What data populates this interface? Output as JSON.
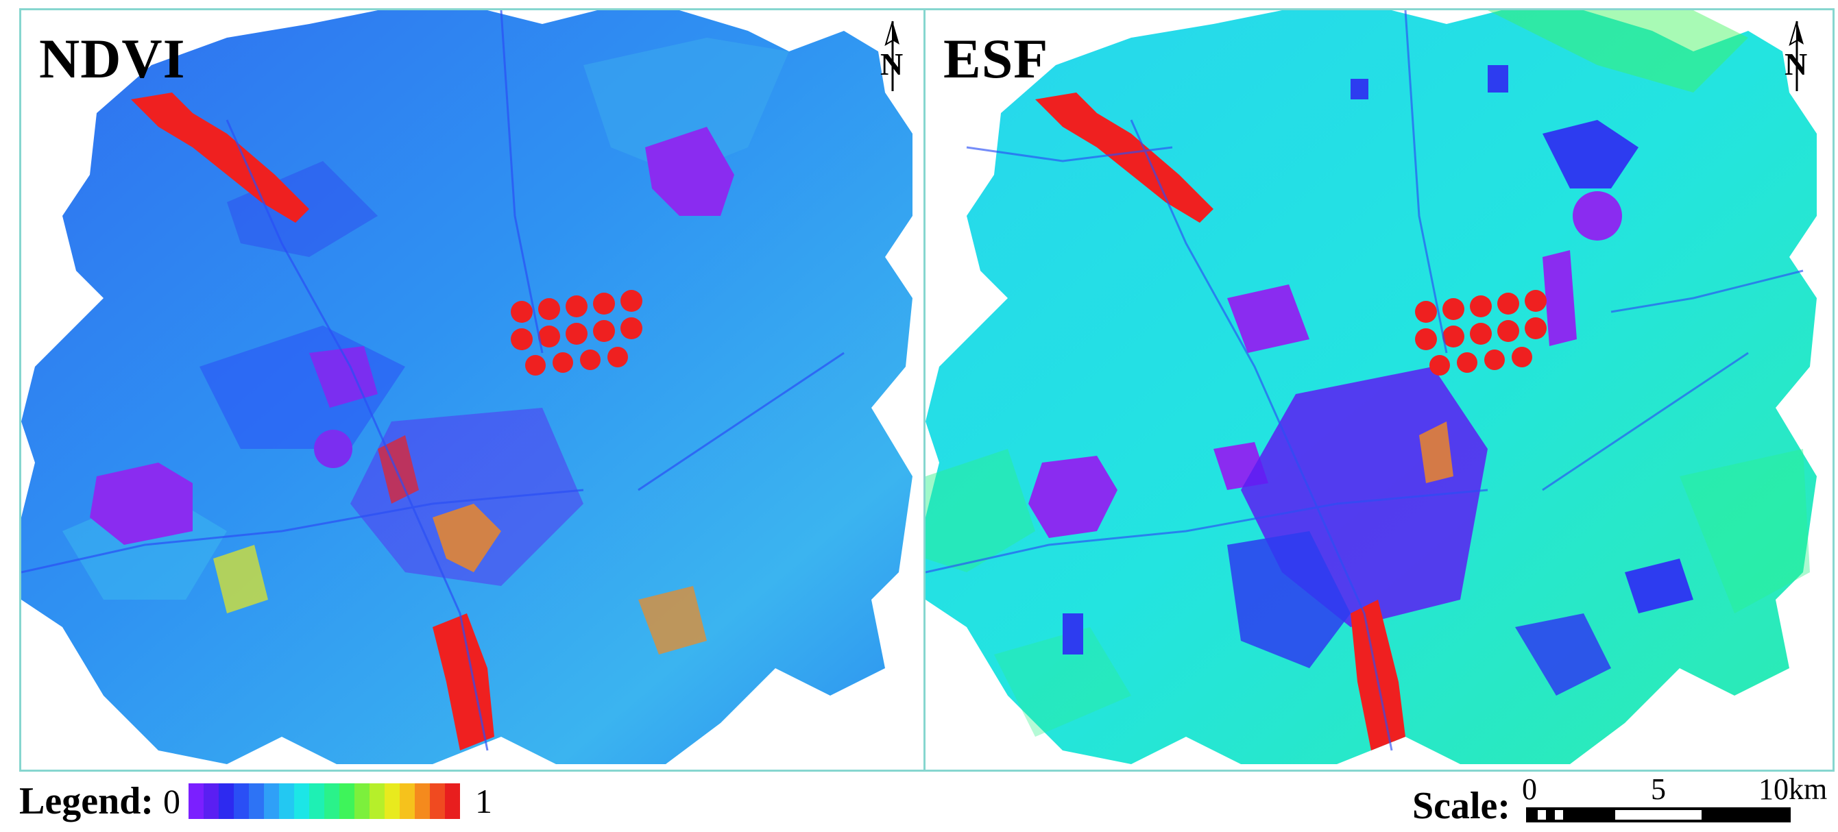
{
  "panels": [
    {
      "title": "NDVI",
      "north_label": "N"
    },
    {
      "title": "ESF",
      "north_label": "N"
    }
  ],
  "legend": {
    "title": "Legend:",
    "min_label": "0",
    "max_label": "1",
    "colors": [
      "#7b1fff",
      "#5a1ff2",
      "#2d2af0",
      "#2a4ff5",
      "#2d73f5",
      "#2fa0f7",
      "#23c8f2",
      "#1ce6e6",
      "#1ef0b4",
      "#2af28a",
      "#3ef45a",
      "#7cf03c",
      "#b6ef2a",
      "#e8ea1e",
      "#f6c21c",
      "#f58a1d",
      "#f04a20",
      "#e81e1e"
    ]
  },
  "scale": {
    "title": "Scale:",
    "ticks": [
      "0",
      "5",
      "10km"
    ]
  },
  "colors": {
    "panel_border": "#86d6cf",
    "urban_violet": "#8a2cf0",
    "vegetation_red": "#ef2020",
    "ndvi_base": "#2f8cf0",
    "esf_base": "#25dcec"
  }
}
